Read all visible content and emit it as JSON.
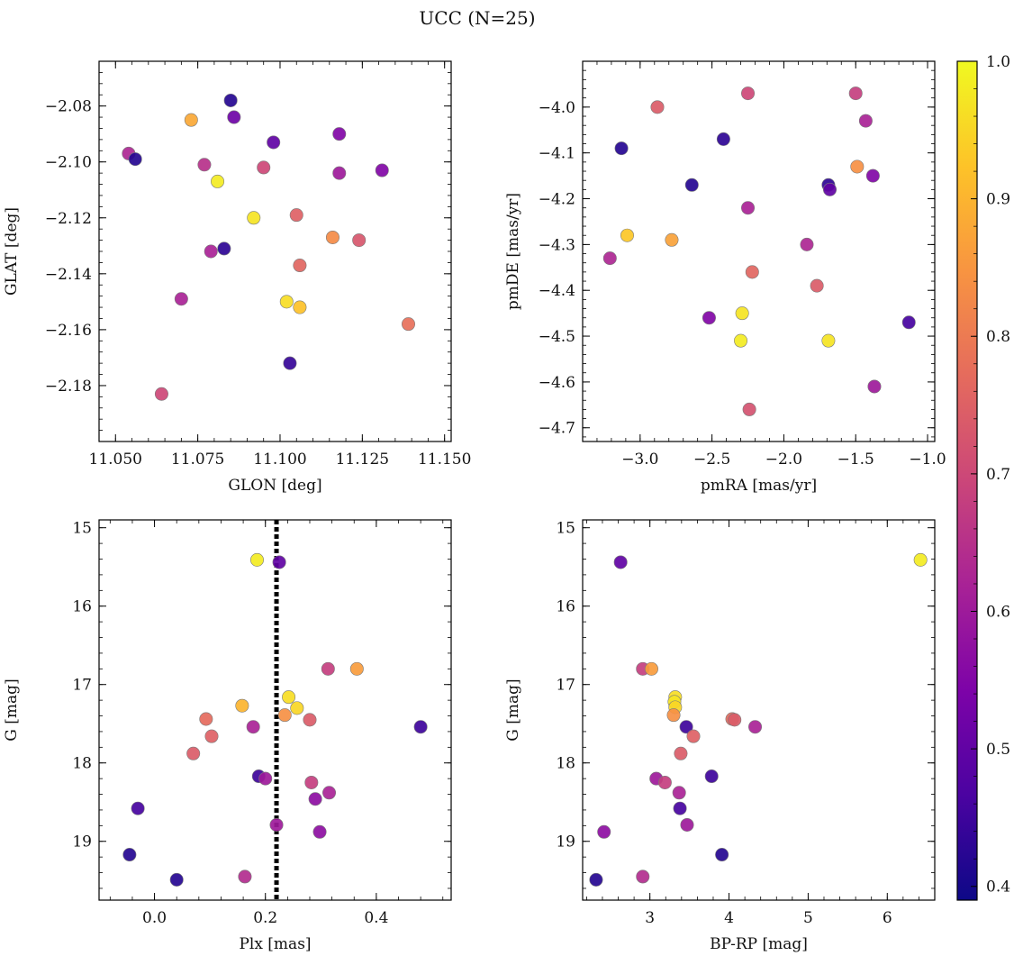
{
  "figure": {
    "title": "UCC (N=25)"
  },
  "colorbar": {
    "min": 0.39,
    "max": 1.0,
    "ticks": [
      0.4,
      0.5,
      0.6,
      0.7,
      0.8,
      0.9,
      1.0
    ],
    "tick_labels": [
      "0.4",
      "0.5",
      "0.6",
      "0.7",
      "0.8",
      "0.9",
      "1.0"
    ],
    "colormap": "plasma"
  },
  "chart_data": [
    {
      "type": "scatter",
      "id": "glon-glat",
      "xlabel": "GLON [deg]",
      "ylabel": "GLAT [deg]",
      "xlim": [
        11.045,
        11.152
      ],
      "ylim": [
        -2.2,
        -2.064
      ],
      "y_inverted": false,
      "xticks": [
        11.05,
        11.075,
        11.1,
        11.125,
        11.15
      ],
      "xtick_labels": [
        "11.050",
        "11.075",
        "11.100",
        "11.125",
        "11.150"
      ],
      "yticks": [
        -2.18,
        -2.16,
        -2.14,
        -2.12,
        -2.1,
        -2.08
      ],
      "ytick_labels": [
        "−2.18",
        "−2.16",
        "−2.14",
        "−2.12",
        "−2.10",
        "−2.08"
      ],
      "points": [
        {
          "x": 11.085,
          "y": -2.078,
          "c": 0.42
        },
        {
          "x": 11.073,
          "y": -2.085,
          "c": 0.88
        },
        {
          "x": 11.086,
          "y": -2.084,
          "c": 0.52
        },
        {
          "x": 11.118,
          "y": -2.09,
          "c": 0.55
        },
        {
          "x": 11.098,
          "y": -2.093,
          "c": 0.5
        },
        {
          "x": 11.054,
          "y": -2.097,
          "c": 0.63
        },
        {
          "x": 11.056,
          "y": -2.099,
          "c": 0.42
        },
        {
          "x": 11.077,
          "y": -2.101,
          "c": 0.65
        },
        {
          "x": 11.095,
          "y": -2.102,
          "c": 0.7
        },
        {
          "x": 11.118,
          "y": -2.104,
          "c": 0.6
        },
        {
          "x": 11.131,
          "y": -2.103,
          "c": 0.55
        },
        {
          "x": 11.081,
          "y": -2.107,
          "c": 0.98
        },
        {
          "x": 11.092,
          "y": -2.12,
          "c": 0.97
        },
        {
          "x": 11.105,
          "y": -2.119,
          "c": 0.75
        },
        {
          "x": 11.116,
          "y": -2.127,
          "c": 0.83
        },
        {
          "x": 11.124,
          "y": -2.128,
          "c": 0.73
        },
        {
          "x": 11.083,
          "y": -2.131,
          "c": 0.43
        },
        {
          "x": 11.079,
          "y": -2.132,
          "c": 0.62
        },
        {
          "x": 11.106,
          "y": -2.137,
          "c": 0.76
        },
        {
          "x": 11.07,
          "y": -2.149,
          "c": 0.62
        },
        {
          "x": 11.102,
          "y": -2.15,
          "c": 0.96
        },
        {
          "x": 11.106,
          "y": -2.152,
          "c": 0.92
        },
        {
          "x": 11.139,
          "y": -2.158,
          "c": 0.78
        },
        {
          "x": 11.103,
          "y": -2.172,
          "c": 0.44
        },
        {
          "x": 11.064,
          "y": -2.183,
          "c": 0.7
        }
      ]
    },
    {
      "type": "scatter",
      "id": "pmra-pmde",
      "xlabel": "pmRA [mas/yr]",
      "ylabel": "pmDE [mas/yr]",
      "xlim": [
        -3.4,
        -0.95
      ],
      "ylim": [
        -4.73,
        -3.9
      ],
      "y_inverted": false,
      "xticks": [
        -3.0,
        -2.5,
        -2.0,
        -1.5,
        -1.0
      ],
      "xtick_labels": [
        "−3.0",
        "−2.5",
        "−2.0",
        "−1.5",
        "−1.0"
      ],
      "yticks": [
        -4.7,
        -4.6,
        -4.5,
        -4.4,
        -4.3,
        -4.2,
        -4.1,
        -4.0
      ],
      "ytick_labels": [
        "−4.7",
        "−4.6",
        "−4.5",
        "−4.4",
        "−4.3",
        "−4.2",
        "−4.1",
        "−4.0"
      ],
      "points": [
        {
          "x": -2.25,
          "y": -3.97,
          "c": 0.7
        },
        {
          "x": -1.5,
          "y": -3.97,
          "c": 0.68
        },
        {
          "x": -2.88,
          "y": -4.0,
          "c": 0.74
        },
        {
          "x": -1.43,
          "y": -4.03,
          "c": 0.62
        },
        {
          "x": -2.42,
          "y": -4.07,
          "c": 0.43
        },
        {
          "x": -3.13,
          "y": -4.09,
          "c": 0.42
        },
        {
          "x": -1.49,
          "y": -4.13,
          "c": 0.84
        },
        {
          "x": -1.38,
          "y": -4.15,
          "c": 0.55
        },
        {
          "x": -2.64,
          "y": -4.17,
          "c": 0.42
        },
        {
          "x": -1.69,
          "y": -4.17,
          "c": 0.43
        },
        {
          "x": -1.68,
          "y": -4.18,
          "c": 0.5
        },
        {
          "x": -2.25,
          "y": -4.22,
          "c": 0.62
        },
        {
          "x": -3.09,
          "y": -4.28,
          "c": 0.93
        },
        {
          "x": -2.78,
          "y": -4.29,
          "c": 0.87
        },
        {
          "x": -1.84,
          "y": -4.3,
          "c": 0.63
        },
        {
          "x": -3.21,
          "y": -4.33,
          "c": 0.63
        },
        {
          "x": -2.22,
          "y": -4.36,
          "c": 0.76
        },
        {
          "x": -1.77,
          "y": -4.39,
          "c": 0.74
        },
        {
          "x": -2.29,
          "y": -4.45,
          "c": 0.97
        },
        {
          "x": -2.52,
          "y": -4.46,
          "c": 0.55
        },
        {
          "x": -1.13,
          "y": -4.47,
          "c": 0.46
        },
        {
          "x": -2.3,
          "y": -4.51,
          "c": 0.98
        },
        {
          "x": -1.69,
          "y": -4.51,
          "c": 0.97
        },
        {
          "x": -1.37,
          "y": -4.61,
          "c": 0.6
        },
        {
          "x": -2.24,
          "y": -4.66,
          "c": 0.72
        }
      ]
    },
    {
      "type": "scatter",
      "id": "plx-g",
      "xlabel": "Plx [mas]",
      "ylabel": "G [mag]",
      "xlim": [
        -0.1,
        0.535
      ],
      "ylim": [
        14.9,
        19.75
      ],
      "y_inverted": true,
      "xticks": [
        0.0,
        0.2,
        0.4
      ],
      "xtick_labels": [
        "0.0",
        "0.2",
        "0.4"
      ],
      "yticks": [
        15,
        16,
        17,
        18,
        19
      ],
      "ytick_labels": [
        "15",
        "16",
        "17",
        "18",
        "19"
      ],
      "vline": {
        "x": 0.22,
        "style": "dotted"
      },
      "points": [
        {
          "x": 0.185,
          "y": 15.41,
          "c": 0.98
        },
        {
          "x": 0.225,
          "y": 15.44,
          "c": 0.5
        },
        {
          "x": 0.313,
          "y": 16.8,
          "c": 0.68
        },
        {
          "x": 0.365,
          "y": 16.8,
          "c": 0.86
        },
        {
          "x": 0.242,
          "y": 17.16,
          "c": 0.96
        },
        {
          "x": 0.158,
          "y": 17.27,
          "c": 0.9
        },
        {
          "x": 0.257,
          "y": 17.3,
          "c": 0.95
        },
        {
          "x": 0.235,
          "y": 17.39,
          "c": 0.84
        },
        {
          "x": 0.093,
          "y": 17.44,
          "c": 0.77
        },
        {
          "x": 0.28,
          "y": 17.45,
          "c": 0.74
        },
        {
          "x": 0.178,
          "y": 17.54,
          "c": 0.62
        },
        {
          "x": 0.48,
          "y": 17.54,
          "c": 0.45
        },
        {
          "x": 0.103,
          "y": 17.66,
          "c": 0.75
        },
        {
          "x": 0.07,
          "y": 17.88,
          "c": 0.74
        },
        {
          "x": 0.188,
          "y": 18.17,
          "c": 0.45
        },
        {
          "x": 0.2,
          "y": 18.2,
          "c": 0.6
        },
        {
          "x": 0.283,
          "y": 18.25,
          "c": 0.68
        },
        {
          "x": 0.315,
          "y": 18.38,
          "c": 0.62
        },
        {
          "x": 0.29,
          "y": 18.46,
          "c": 0.57
        },
        {
          "x": -0.03,
          "y": 18.58,
          "c": 0.46
        },
        {
          "x": 0.22,
          "y": 18.79,
          "c": 0.6
        },
        {
          "x": 0.298,
          "y": 18.88,
          "c": 0.57
        },
        {
          "x": -0.045,
          "y": 19.17,
          "c": 0.42
        },
        {
          "x": 0.163,
          "y": 19.45,
          "c": 0.64
        },
        {
          "x": 0.04,
          "y": 19.49,
          "c": 0.42
        }
      ]
    },
    {
      "type": "scatter",
      "id": "bprp-g",
      "xlabel": "BP-RP [mag]",
      "ylabel": "G [mag]",
      "xlim": [
        2.15,
        6.6
      ],
      "ylim": [
        14.9,
        19.75
      ],
      "y_inverted": true,
      "xticks": [
        3,
        4,
        5,
        6
      ],
      "xtick_labels": [
        "3",
        "4",
        "5",
        "6"
      ],
      "yticks": [
        15,
        16,
        17,
        18,
        19
      ],
      "ytick_labels": [
        "15",
        "16",
        "17",
        "18",
        "19"
      ],
      "points": [
        {
          "x": 6.42,
          "y": 15.41,
          "c": 0.98
        },
        {
          "x": 2.63,
          "y": 15.44,
          "c": 0.5
        },
        {
          "x": 2.91,
          "y": 16.8,
          "c": 0.68
        },
        {
          "x": 3.02,
          "y": 16.8,
          "c": 0.86
        },
        {
          "x": 3.32,
          "y": 17.16,
          "c": 0.96
        },
        {
          "x": 3.31,
          "y": 17.22,
          "c": 0.97
        },
        {
          "x": 3.32,
          "y": 17.29,
          "c": 0.95
        },
        {
          "x": 3.3,
          "y": 17.39,
          "c": 0.84
        },
        {
          "x": 4.04,
          "y": 17.44,
          "c": 0.77
        },
        {
          "x": 4.07,
          "y": 17.45,
          "c": 0.74
        },
        {
          "x": 3.46,
          "y": 17.54,
          "c": 0.45
        },
        {
          "x": 4.33,
          "y": 17.54,
          "c": 0.62
        },
        {
          "x": 3.55,
          "y": 17.66,
          "c": 0.75
        },
        {
          "x": 3.39,
          "y": 17.88,
          "c": 0.74
        },
        {
          "x": 3.78,
          "y": 18.17,
          "c": 0.45
        },
        {
          "x": 3.08,
          "y": 18.2,
          "c": 0.6
        },
        {
          "x": 3.19,
          "y": 18.25,
          "c": 0.68
        },
        {
          "x": 3.37,
          "y": 18.38,
          "c": 0.62
        },
        {
          "x": 3.38,
          "y": 18.58,
          "c": 0.46
        },
        {
          "x": 3.47,
          "y": 18.79,
          "c": 0.6
        },
        {
          "x": 2.42,
          "y": 18.88,
          "c": 0.57
        },
        {
          "x": 3.91,
          "y": 19.17,
          "c": 0.42
        },
        {
          "x": 2.91,
          "y": 19.45,
          "c": 0.64
        },
        {
          "x": 2.32,
          "y": 19.49,
          "c": 0.42
        }
      ]
    }
  ]
}
